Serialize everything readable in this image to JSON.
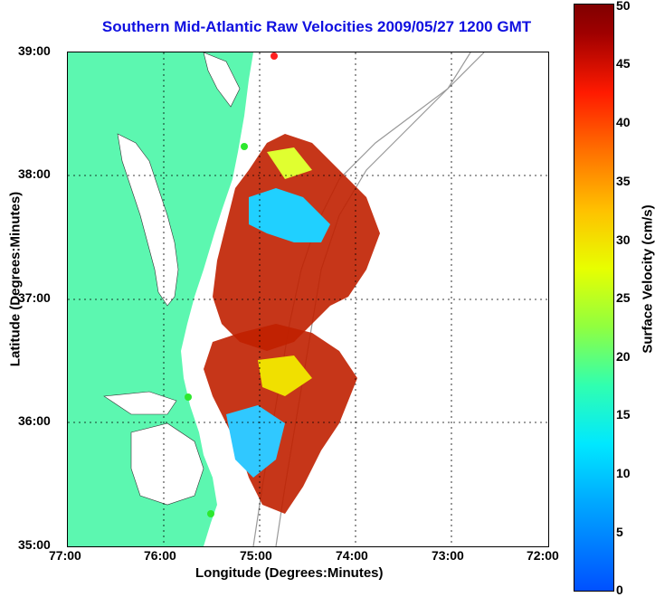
{
  "title": "Southern Mid-Atlantic Raw Velocities 2009/05/27 1200 GMT",
  "x_axis": {
    "label": "Longitude (Degrees:Minutes)",
    "ticks": [
      "77:00",
      "76:00",
      "75:00",
      "74:00",
      "73:00",
      "72:00"
    ]
  },
  "y_axis": {
    "label": "Latitude (Degrees:Minutes)",
    "ticks": [
      "39:00",
      "38:00",
      "37:00",
      "36:00",
      "35:00"
    ]
  },
  "colorbar": {
    "label": "Surface Velocity (cm/s)",
    "ticks": [
      "50",
      "45",
      "40",
      "35",
      "30",
      "25",
      "20",
      "15",
      "10",
      "5",
      "0"
    ],
    "min": 0,
    "max": 50
  },
  "colors": {
    "title": "#1010e0",
    "land": "#5cf7b0",
    "grid": "#000000"
  }
}
